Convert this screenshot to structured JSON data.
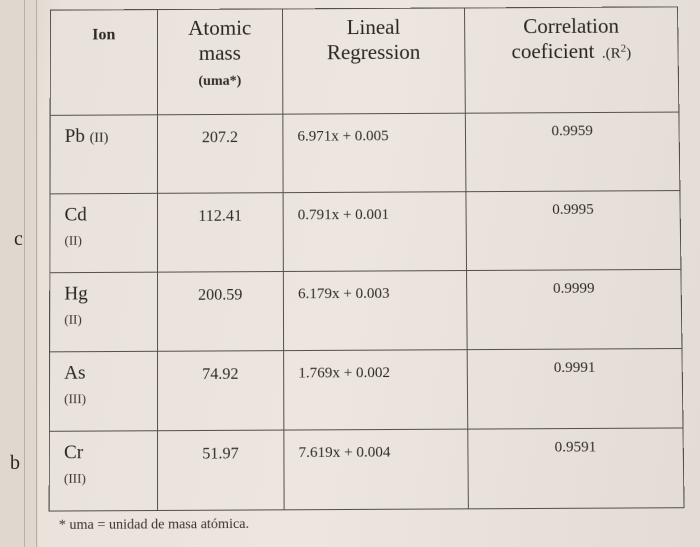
{
  "table": {
    "headers": {
      "ion": "Ion",
      "atomic_mass_hand1": "Atomic",
      "atomic_mass_hand2": "mass",
      "atomic_mass_unit": "(uma*)",
      "lineal_hand1": "Lineal",
      "lineal_hand2": "Regression",
      "corr_hand1": "Correlation",
      "corr_hand2": "coeficient",
      "corr_r2": "(R",
      "corr_r2_sup": "2",
      "corr_r2_close": ")"
    },
    "rows": [
      {
        "ion_hand": "Pb",
        "roman": "(II)",
        "mass": "207.2",
        "regression": "6.971x + 0.005",
        "corr": "0.9959",
        "roman_inline": true
      },
      {
        "ion_hand": "Cd",
        "roman": "(II)",
        "mass": "112.41",
        "regression": "0.791x + 0.001",
        "corr": "0.9995",
        "roman_inline": false
      },
      {
        "ion_hand": "Hg",
        "roman": "(II)",
        "mass": "200.59",
        "regression": "6.179x + 0.003",
        "corr": "0.9999",
        "roman_inline": false
      },
      {
        "ion_hand": "As",
        "roman": "(III)",
        "mass": "74.92",
        "regression": "1.769x + 0.002",
        "corr": "0.9991",
        "roman_inline": false
      },
      {
        "ion_hand": "Cr",
        "roman": "(III)",
        "mass": "51.97",
        "regression": "7.619x + 0.004",
        "corr": "0.9591",
        "roman_inline": false
      }
    ],
    "footnote": "* uma = unidad de masa atómica.",
    "left_labels": {
      "c": "c",
      "b": "b"
    },
    "colors": {
      "border": "#555048",
      "text": "#2f2a24",
      "background": "#ece6de"
    }
  }
}
